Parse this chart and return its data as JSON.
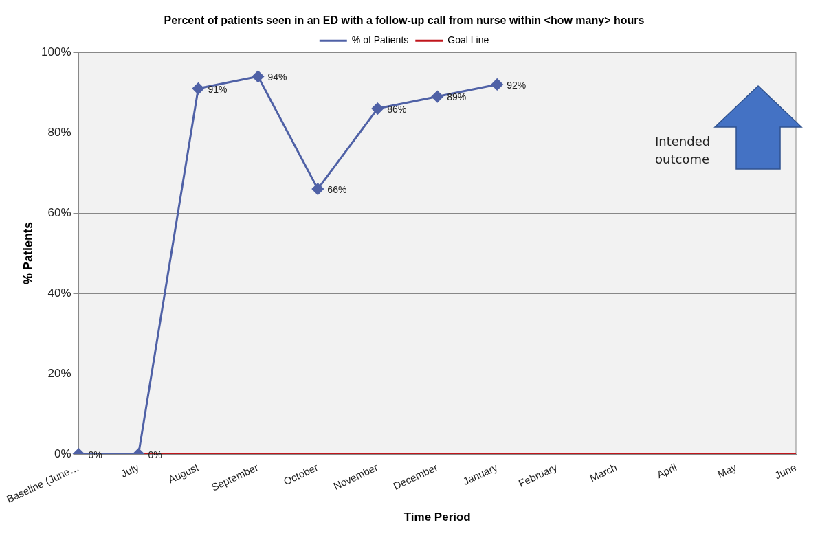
{
  "chart_data": {
    "type": "line",
    "title": "Percent of patients seen in an ED with a follow-up call from nurse within <how many> hours",
    "xlabel": "Time Period",
    "ylabel": "% Patients",
    "categories": [
      "Baseline (June…",
      "July",
      "August",
      "September",
      "October",
      "November",
      "December",
      "January",
      "February",
      "March",
      "April",
      "May",
      "June"
    ],
    "series": [
      {
        "name": "% of Patients",
        "color": "#4f61a6",
        "marker": "diamond",
        "values": [
          0,
          0,
          91,
          94,
          66,
          86,
          89,
          92,
          null,
          null,
          null,
          null,
          null
        ],
        "value_labels": [
          "0%",
          "0%",
          "91%",
          "94%",
          "66%",
          "86%",
          "89%",
          "92%",
          null,
          null,
          null,
          null,
          null
        ]
      },
      {
        "name": "Goal Line",
        "color": "#c0161c",
        "marker": "none",
        "values": [
          0,
          0,
          0,
          0,
          0,
          0,
          0,
          0,
          0,
          0,
          0,
          0,
          0
        ]
      }
    ],
    "ylim": [
      0,
      100
    ],
    "yticks": [
      {
        "value": 0,
        "label": "0%"
      },
      {
        "value": 20,
        "label": "20%"
      },
      {
        "value": 40,
        "label": "40%"
      },
      {
        "value": 60,
        "label": "60%"
      },
      {
        "value": 80,
        "label": "80%"
      },
      {
        "value": 100,
        "label": "100%"
      }
    ],
    "grid": "y",
    "legend": "top",
    "line_style": "solid",
    "annotations": [
      "Intended outcome"
    ]
  }
}
